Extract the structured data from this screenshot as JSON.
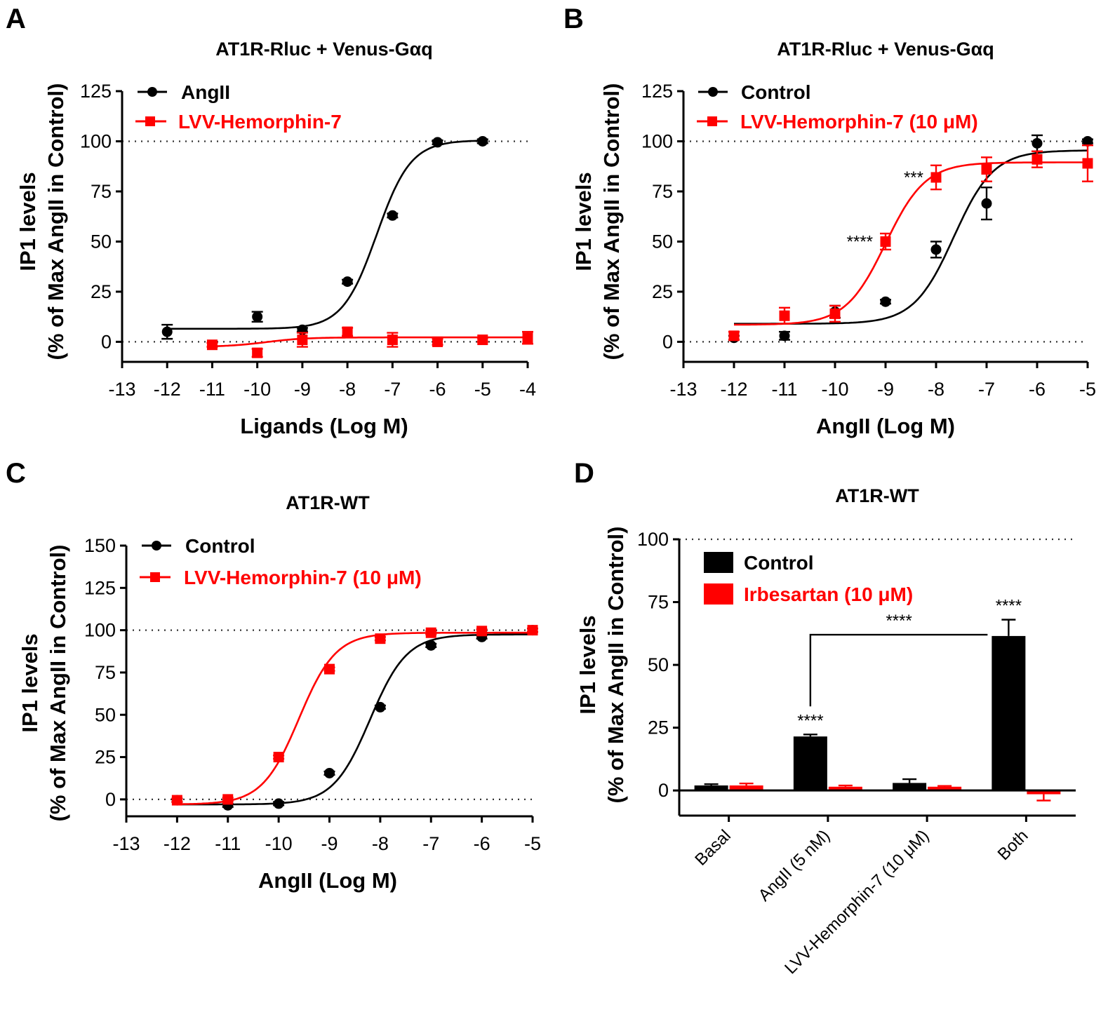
{
  "colors": {
    "control": "#000000",
    "treatment": "#ff0000"
  },
  "panels": {
    "A": {
      "letter": "A",
      "title": "AT1R-Rluc + Venus-Gαq",
      "ylabel1": "IP1 levels",
      "ylabel2": "(% of Max AngII in Control)",
      "xlabel": "Ligands (Log M)",
      "legend": [
        "AngII",
        "LVV-Hemorphin-7"
      ]
    },
    "B": {
      "letter": "B",
      "title": "AT1R-Rluc + Venus-Gαq",
      "ylabel1": "IP1 levels",
      "ylabel2": "(% of Max AngII in Control)",
      "xlabel": "AngII (Log M)",
      "legend": [
        "Control",
        "LVV-Hemorphin-7 (10 μM)"
      ]
    },
    "C": {
      "letter": "C",
      "title": "AT1R-WT",
      "ylabel1": "IP1 levels",
      "ylabel2": "(% of Max AngII in Control)",
      "xlabel": "AngII (Log M)",
      "legend": [
        "Control",
        "LVV-Hemorphin-7 (10 μM)"
      ]
    },
    "D": {
      "letter": "D",
      "title": "AT1R-WT",
      "ylabel1": "IP1 levels",
      "ylabel2": "(% of Max AngII in Control)",
      "legend": [
        "Control",
        "Irbesartan (10 μM)"
      ]
    }
  },
  "chart_data": [
    {
      "panel": "A",
      "type": "scatter",
      "fit": "sigmoid",
      "title": "AT1R-Rluc + Venus-Gαq",
      "xlabel": "Ligands (Log M)",
      "ylabel": "IP1 levels (% of Max AngII in Control)",
      "xlim": [
        -13,
        -4
      ],
      "ylim": [
        -10,
        125
      ],
      "xticks": [
        -13,
        -12,
        -11,
        -10,
        -9,
        -8,
        -7,
        -6,
        -5,
        -4
      ],
      "yticks": [
        0,
        25,
        50,
        75,
        100,
        125
      ],
      "reference_lines": [
        0,
        100
      ],
      "series": [
        {
          "name": "AngII",
          "color": "black",
          "marker": "circle",
          "x": [
            -12,
            -10,
            -9,
            -8,
            -7,
            -6,
            -5
          ],
          "y": [
            5,
            12.5,
            6,
            30,
            63,
            99.5,
            100
          ],
          "err": [
            3.5,
            2.5,
            1,
            1,
            1,
            1,
            1
          ],
          "fit": {
            "bottom": 6.5,
            "top": 100.5,
            "logec50": -7.35,
            "hill": 1.15,
            "from": -12,
            "to": -5
          }
        },
        {
          "name": "LVV-Hemorphin-7",
          "color": "red",
          "marker": "square",
          "x": [
            -11,
            -10,
            -9,
            -8,
            -7,
            -6,
            -5,
            -4
          ],
          "y": [
            -1.5,
            -5.5,
            1,
            5,
            1,
            0,
            1,
            2
          ],
          "err": [
            1,
            2,
            3.5,
            2,
            3.5,
            1.5,
            1,
            3
          ],
          "fit": {
            "bottom": -2.5,
            "top": 2.2,
            "logec50": -9.8,
            "hill": 1,
            "from": -11,
            "to": -4
          }
        }
      ]
    },
    {
      "panel": "B",
      "type": "scatter",
      "fit": "sigmoid",
      "title": "AT1R-Rluc + Venus-Gαq",
      "xlabel": "AngII (Log M)",
      "ylabel": "IP1 levels (% of Max AngII in Control)",
      "xlim": [
        -13,
        -5
      ],
      "ylim": [
        -10,
        125
      ],
      "xticks": [
        -13,
        -12,
        -11,
        -10,
        -9,
        -8,
        -7,
        -6,
        -5
      ],
      "yticks": [
        0,
        25,
        50,
        75,
        100,
        125
      ],
      "reference_lines": [
        0,
        100
      ],
      "series": [
        {
          "name": "Control",
          "color": "black",
          "marker": "circle",
          "x": [
            -12,
            -11,
            -10,
            -9,
            -8,
            -7,
            -6,
            -5
          ],
          "y": [
            2,
            3,
            15,
            20,
            46,
            69,
            99,
            100
          ],
          "err": [
            1,
            2,
            3,
            1,
            4,
            8,
            4,
            1
          ],
          "fit": {
            "bottom": 9,
            "top": 95.5,
            "logec50": -7.65,
            "hill": 1.1,
            "from": -12,
            "to": -5
          }
        },
        {
          "name": "LVV-Hemorphin-7 (10 μM)",
          "color": "red",
          "marker": "square",
          "x": [
            -12,
            -11,
            -10,
            -9,
            -8,
            -7,
            -6,
            -5
          ],
          "y": [
            3,
            13,
            14,
            50,
            82,
            86,
            91,
            89
          ],
          "err": [
            2,
            4,
            4,
            4,
            6,
            6,
            4,
            9
          ],
          "fit": {
            "bottom": 8.5,
            "top": 89.5,
            "logec50": -9.0,
            "hill": 1.1,
            "from": -12,
            "to": -5
          }
        }
      ],
      "annotations": [
        {
          "text": "****",
          "x": -9,
          "y": 50
        },
        {
          "text": "***",
          "x": -8,
          "y": 82
        }
      ]
    },
    {
      "panel": "C",
      "type": "scatter",
      "fit": "sigmoid",
      "title": "AT1R-WT",
      "xlabel": "AngII (Log M)",
      "ylabel": "IP1 levels (% of Max AngII in Control)",
      "xlim": [
        -13,
        -5
      ],
      "ylim": [
        -10,
        150
      ],
      "xticks": [
        -13,
        -12,
        -11,
        -10,
        -9,
        -8,
        -7,
        -6,
        -5
      ],
      "yticks": [
        0,
        25,
        50,
        75,
        100,
        125,
        150
      ],
      "reference_lines": [
        0,
        100
      ],
      "series": [
        {
          "name": "Control",
          "color": "black",
          "marker": "circle",
          "x": [
            -12,
            -11,
            -10,
            -9,
            -8,
            -7,
            -6,
            -5
          ],
          "y": [
            -0.5,
            -3.5,
            -2.5,
            15.5,
            54.5,
            91,
            96,
            100
          ],
          "err": [
            1,
            1,
            1,
            1,
            1,
            1,
            1,
            1
          ],
          "fit": {
            "bottom": -3,
            "top": 97.5,
            "logec50": -8.2,
            "hill": 1.2,
            "from": -12,
            "to": -5
          }
        },
        {
          "name": "LVV-Hemorphin-7 (10 μM)",
          "color": "red",
          "marker": "square",
          "x": [
            -12,
            -11,
            -10,
            -9,
            -8,
            -7,
            -6,
            -5
          ],
          "y": [
            -0.5,
            0,
            25,
            77,
            95,
            98.5,
            99.5,
            100
          ],
          "err": [
            1,
            1,
            1,
            1,
            1,
            1,
            1,
            1
          ],
          "fit": {
            "bottom": -3,
            "top": 98.5,
            "logec50": -9.6,
            "hill": 1.2,
            "from": -12,
            "to": -5
          }
        }
      ]
    },
    {
      "panel": "D",
      "type": "bar",
      "title": "AT1R-WT",
      "ylabel": "IP1 levels (% of Max AngII in Control)",
      "ylim": [
        -10,
        100
      ],
      "yticks": [
        0,
        25,
        50,
        75,
        100
      ],
      "reference_lines": [
        100
      ],
      "categories": [
        "Basal",
        "AngII (5 nM)",
        "LVV-Hemorphin-7 (10 μM)",
        "Both"
      ],
      "series": [
        {
          "name": "Control",
          "color": "black",
          "values": [
            2,
            21.5,
            3,
            61.5
          ],
          "err": [
            0.5,
            0.8,
            1.5,
            6.5
          ]
        },
        {
          "name": "Irbesartan (10 μM)",
          "color": "red",
          "values": [
            2,
            1.5,
            1.5,
            -1.5
          ],
          "err": [
            0.8,
            0.5,
            0.3,
            2.5
          ]
        }
      ],
      "annotations": [
        {
          "text": "****",
          "category": "AngII (5 nM)"
        },
        {
          "text": "****",
          "category": "Both"
        }
      ],
      "comparison": {
        "from": "AngII (5 nM)",
        "to": "Both",
        "text": "****"
      }
    }
  ]
}
